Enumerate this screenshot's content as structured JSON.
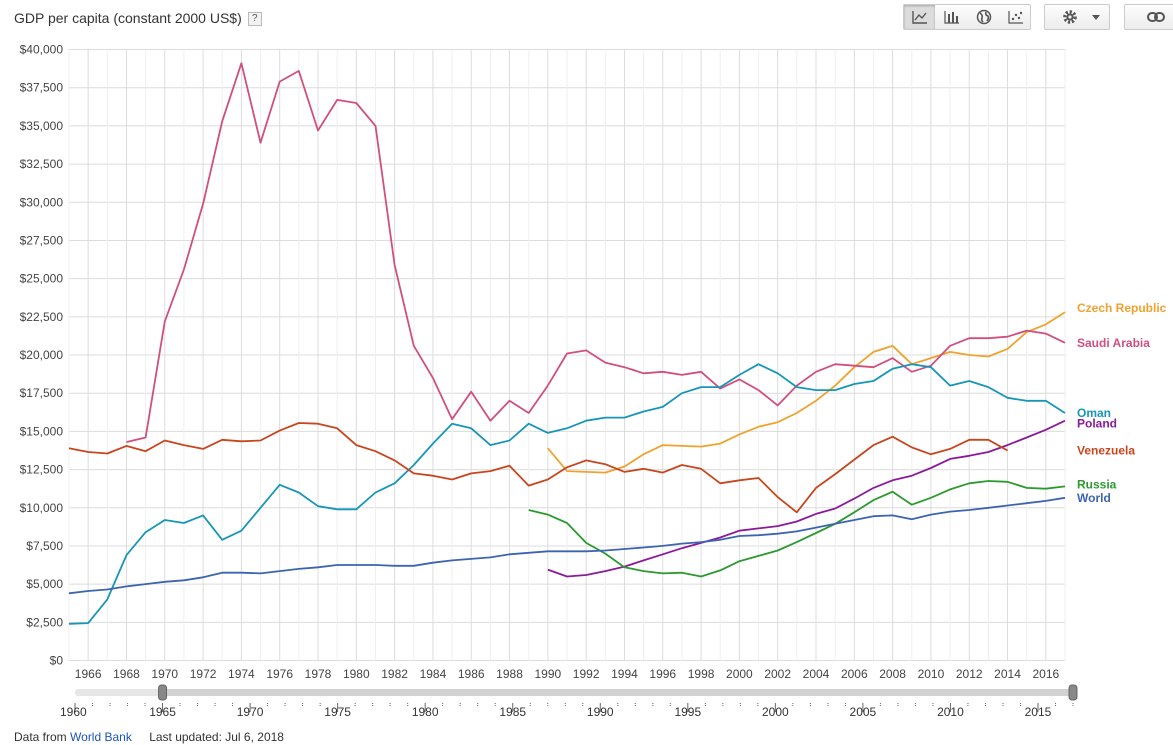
{
  "header": {
    "title": "GDP per capita (constant 2000 US$)",
    "help": "?"
  },
  "toolbar": {
    "buttons": [
      {
        "name": "line-chart-icon",
        "active": true
      },
      {
        "name": "bar-chart-icon",
        "active": false
      },
      {
        "name": "globe-icon",
        "active": false
      },
      {
        "name": "scatter-icon",
        "active": false
      }
    ],
    "settings": "gear-icon",
    "link": "link-icon"
  },
  "footer": {
    "source_prefix": "Data from",
    "source_link": "World Bank",
    "updated": "Last updated: Jul 6, 2018"
  },
  "chart_data": {
    "type": "line",
    "title": "GDP per capita (constant 2000 US$)",
    "xlim": [
      1965,
      2017
    ],
    "ylim": [
      0,
      40000
    ],
    "y_ticks": [
      0,
      2500,
      5000,
      7500,
      10000,
      12500,
      15000,
      17500,
      20000,
      22500,
      25000,
      27500,
      30000,
      32500,
      35000,
      37500,
      40000
    ],
    "y_tick_labels": [
      "$0",
      "$2,500",
      "$5,000",
      "$7,500",
      "$10,000",
      "$12,500",
      "$15,000",
      "$17,500",
      "$20,000",
      "$22,500",
      "$25,000",
      "$27,500",
      "$30,000",
      "$32,500",
      "$35,000",
      "$37,500",
      "$40,000"
    ],
    "x_ticks": [
      1966,
      1968,
      1970,
      1972,
      1974,
      1976,
      1978,
      1980,
      1982,
      1984,
      1986,
      1988,
      1990,
      1992,
      1994,
      1996,
      1998,
      2000,
      2002,
      2004,
      2006,
      2008,
      2010,
      2012,
      2014,
      2016
    ],
    "grid": true,
    "legend": "right",
    "series": [
      {
        "name": "Czech Republic",
        "color": "#f0a22e",
        "start": 1990,
        "values": [
          13900,
          12400,
          12350,
          12300,
          12700,
          13500,
          14100,
          14050,
          14000,
          14200,
          14800,
          15300,
          15600,
          16200,
          17000,
          18000,
          19200,
          20200,
          20600,
          19400,
          19800,
          20200,
          20000,
          19900,
          20400,
          21500,
          22000,
          22800
        ]
      },
      {
        "name": "Saudi Arabia",
        "color": "#d04f7f",
        "start": 1968,
        "values": [
          14300,
          14600,
          22200,
          25600,
          29900,
          35300,
          39100,
          33900,
          37900,
          38600,
          34700,
          36700,
          36500,
          35000,
          25900,
          20600,
          18500,
          15800,
          17600,
          15700,
          17000,
          16200,
          18000,
          20100,
          20300,
          19500,
          19200,
          18800,
          18900,
          18700,
          18900,
          17800,
          18400,
          17700,
          16700,
          18000,
          18900,
          19400,
          19300,
          19200,
          19800,
          18900,
          19300,
          20600,
          21100,
          21100,
          21200,
          21600,
          21400,
          20800
        ]
      },
      {
        "name": "Oman",
        "color": "#1796b8",
        "start": 1965,
        "values": [
          2400,
          2450,
          4000,
          6900,
          8400,
          9200,
          9000,
          9500,
          7900,
          8500,
          10000,
          11500,
          11000,
          10100,
          9900,
          9900,
          11000,
          11600,
          12800,
          14200,
          15500,
          15200,
          14100,
          14400,
          15500,
          14900,
          15200,
          15700,
          15900,
          15900,
          16300,
          16600,
          17500,
          17900,
          17900,
          18700,
          19400,
          18800,
          17900,
          17700,
          17700,
          18100,
          18300,
          19100,
          19400,
          19200,
          18000,
          18300,
          17900,
          17200,
          17000,
          17000,
          16200
        ]
      },
      {
        "name": "Poland",
        "color": "#8b1a9a",
        "start": 1990,
        "values": [
          5950,
          5500,
          5600,
          5850,
          6150,
          6550,
          6950,
          7350,
          7700,
          8050,
          8500,
          8650,
          8800,
          9100,
          9600,
          9950,
          10600,
          11300,
          11800,
          12100,
          12600,
          13200,
          13400,
          13650,
          14100,
          14600,
          15100,
          15700
        ]
      },
      {
        "name": "Venezuela",
        "color": "#c8461e",
        "start": 1965,
        "values": [
          13900,
          13650,
          13550,
          14050,
          13700,
          14400,
          14100,
          13850,
          14450,
          14350,
          14400,
          15050,
          15550,
          15500,
          15200,
          14100,
          13700,
          13100,
          12250,
          12100,
          11850,
          12250,
          12400,
          12750,
          11450,
          11850,
          12650,
          13100,
          12850,
          12350,
          12550,
          12300,
          12800,
          12550,
          11600,
          11800,
          11950,
          10700,
          9700,
          11300,
          12200,
          13150,
          14100,
          14650,
          13950,
          13500,
          13850,
          14450,
          14450,
          13750
        ]
      },
      {
        "name": "Russia",
        "color": "#2c9a2f",
        "start": 1989,
        "values": [
          9850,
          9550,
          9000,
          7700,
          7000,
          6100,
          5850,
          5700,
          5750,
          5500,
          5900,
          6500,
          6850,
          7200,
          7750,
          8350,
          8950,
          9700,
          10500,
          11050,
          10200,
          10650,
          11200,
          11600,
          11750,
          11700,
          11300,
          11250,
          11400
        ]
      },
      {
        "name": "World",
        "color": "#3d64b0",
        "start": 1965,
        "values": [
          4400,
          4550,
          4650,
          4850,
          5000,
          5150,
          5250,
          5450,
          5750,
          5750,
          5700,
          5850,
          6000,
          6100,
          6250,
          6250,
          6250,
          6200,
          6200,
          6400,
          6550,
          6650,
          6750,
          6950,
          7050,
          7150,
          7150,
          7150,
          7200,
          7300,
          7400,
          7500,
          7650,
          7750,
          7900,
          8150,
          8200,
          8300,
          8450,
          8700,
          8950,
          9200,
          9450,
          9500,
          9250,
          9550,
          9750,
          9850,
          10000,
          10150,
          10300,
          10450,
          10650
        ]
      }
    ]
  },
  "timeline": {
    "range": [
      1960,
      2017
    ],
    "handle_start": 1965,
    "handle_end": 2017,
    "labels": [
      {
        "year": 1960,
        "text": "1960"
      },
      {
        "year": 1965,
        "text": "1965"
      },
      {
        "year": 1970,
        "text": "1970"
      },
      {
        "year": 1975,
        "text": "1975"
      },
      {
        "year": 1980,
        "text": "1980"
      },
      {
        "year": 1985,
        "text": "1985"
      },
      {
        "year": 1990,
        "text": "1990"
      },
      {
        "year": 1995,
        "text": "1995"
      },
      {
        "year": 2000,
        "text": "2000"
      },
      {
        "year": 2005,
        "text": "2005"
      },
      {
        "year": 2010,
        "text": "2010"
      },
      {
        "year": 2015,
        "text": "2015"
      }
    ]
  }
}
